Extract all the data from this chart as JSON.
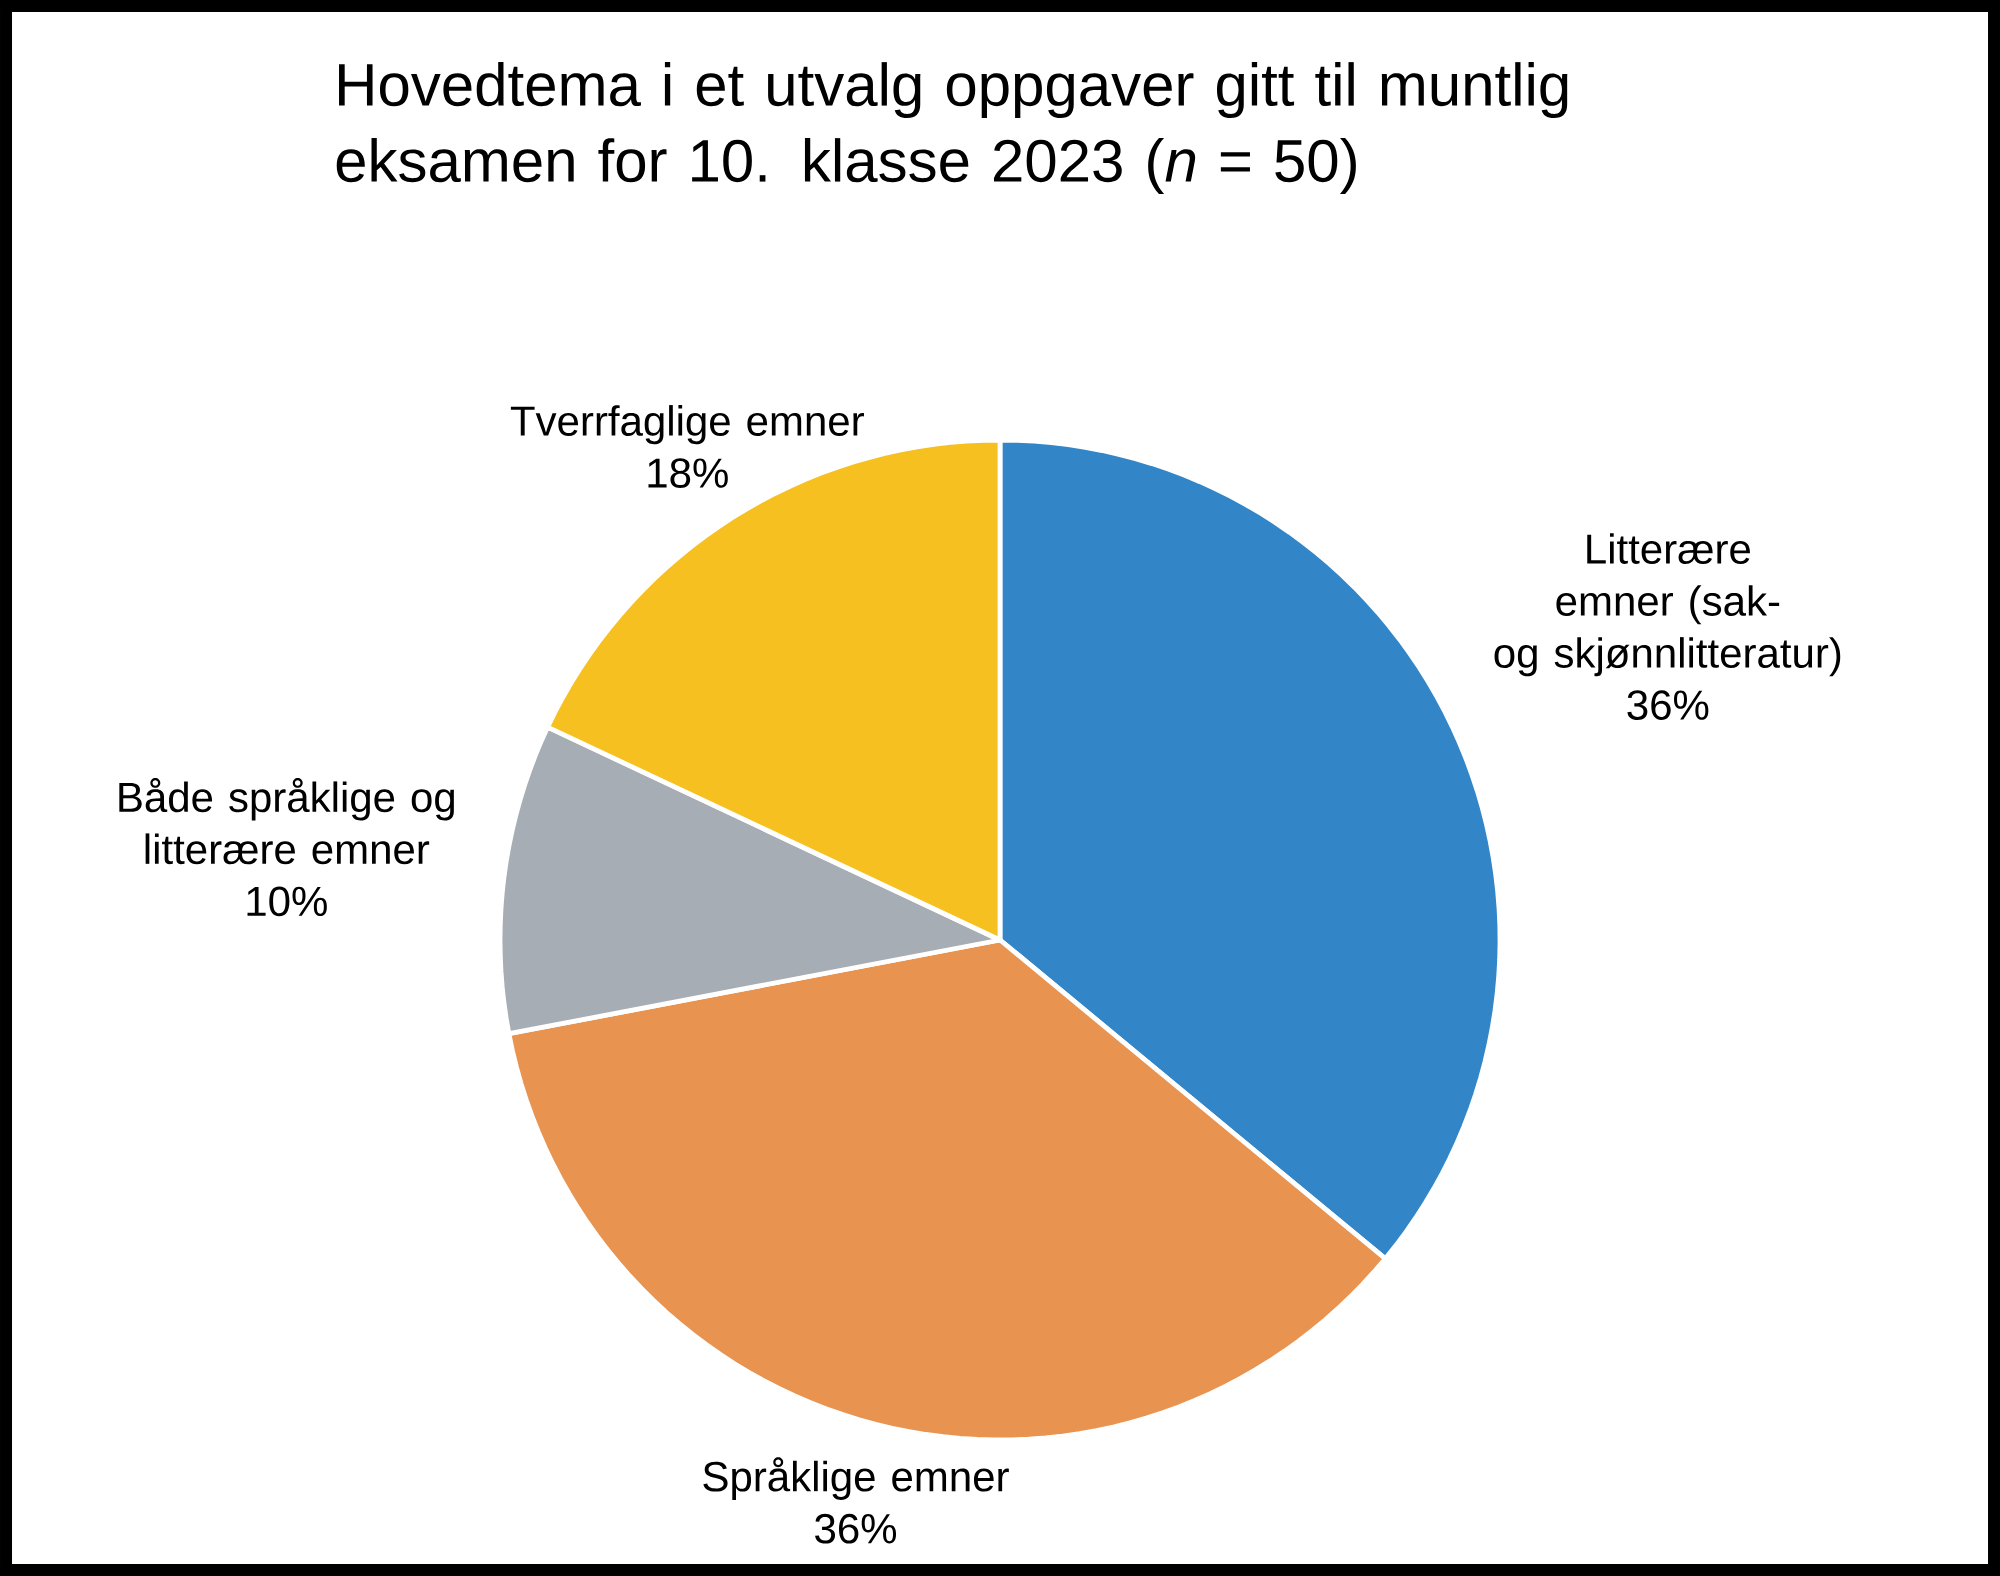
{
  "chart_data": {
    "type": "pie",
    "title": "Hovedtema i et utvalg oppgaver gitt til muntlig eksamen for 10. klasse 2023 (*n* = 50)",
    "categories": [
      "Litterære emner (sak- og skjønnlitteratur)",
      "Språklige emner",
      "Både språklige og litterære emner",
      "Tverrfaglige emner"
    ],
    "values": [
      36,
      36,
      10,
      18
    ],
    "value_labels": [
      "36%",
      "36%",
      "10%",
      "18%"
    ],
    "colors": [
      "#3286c8",
      "#e89350",
      "#a6adb4",
      "#f6c020"
    ]
  }
}
